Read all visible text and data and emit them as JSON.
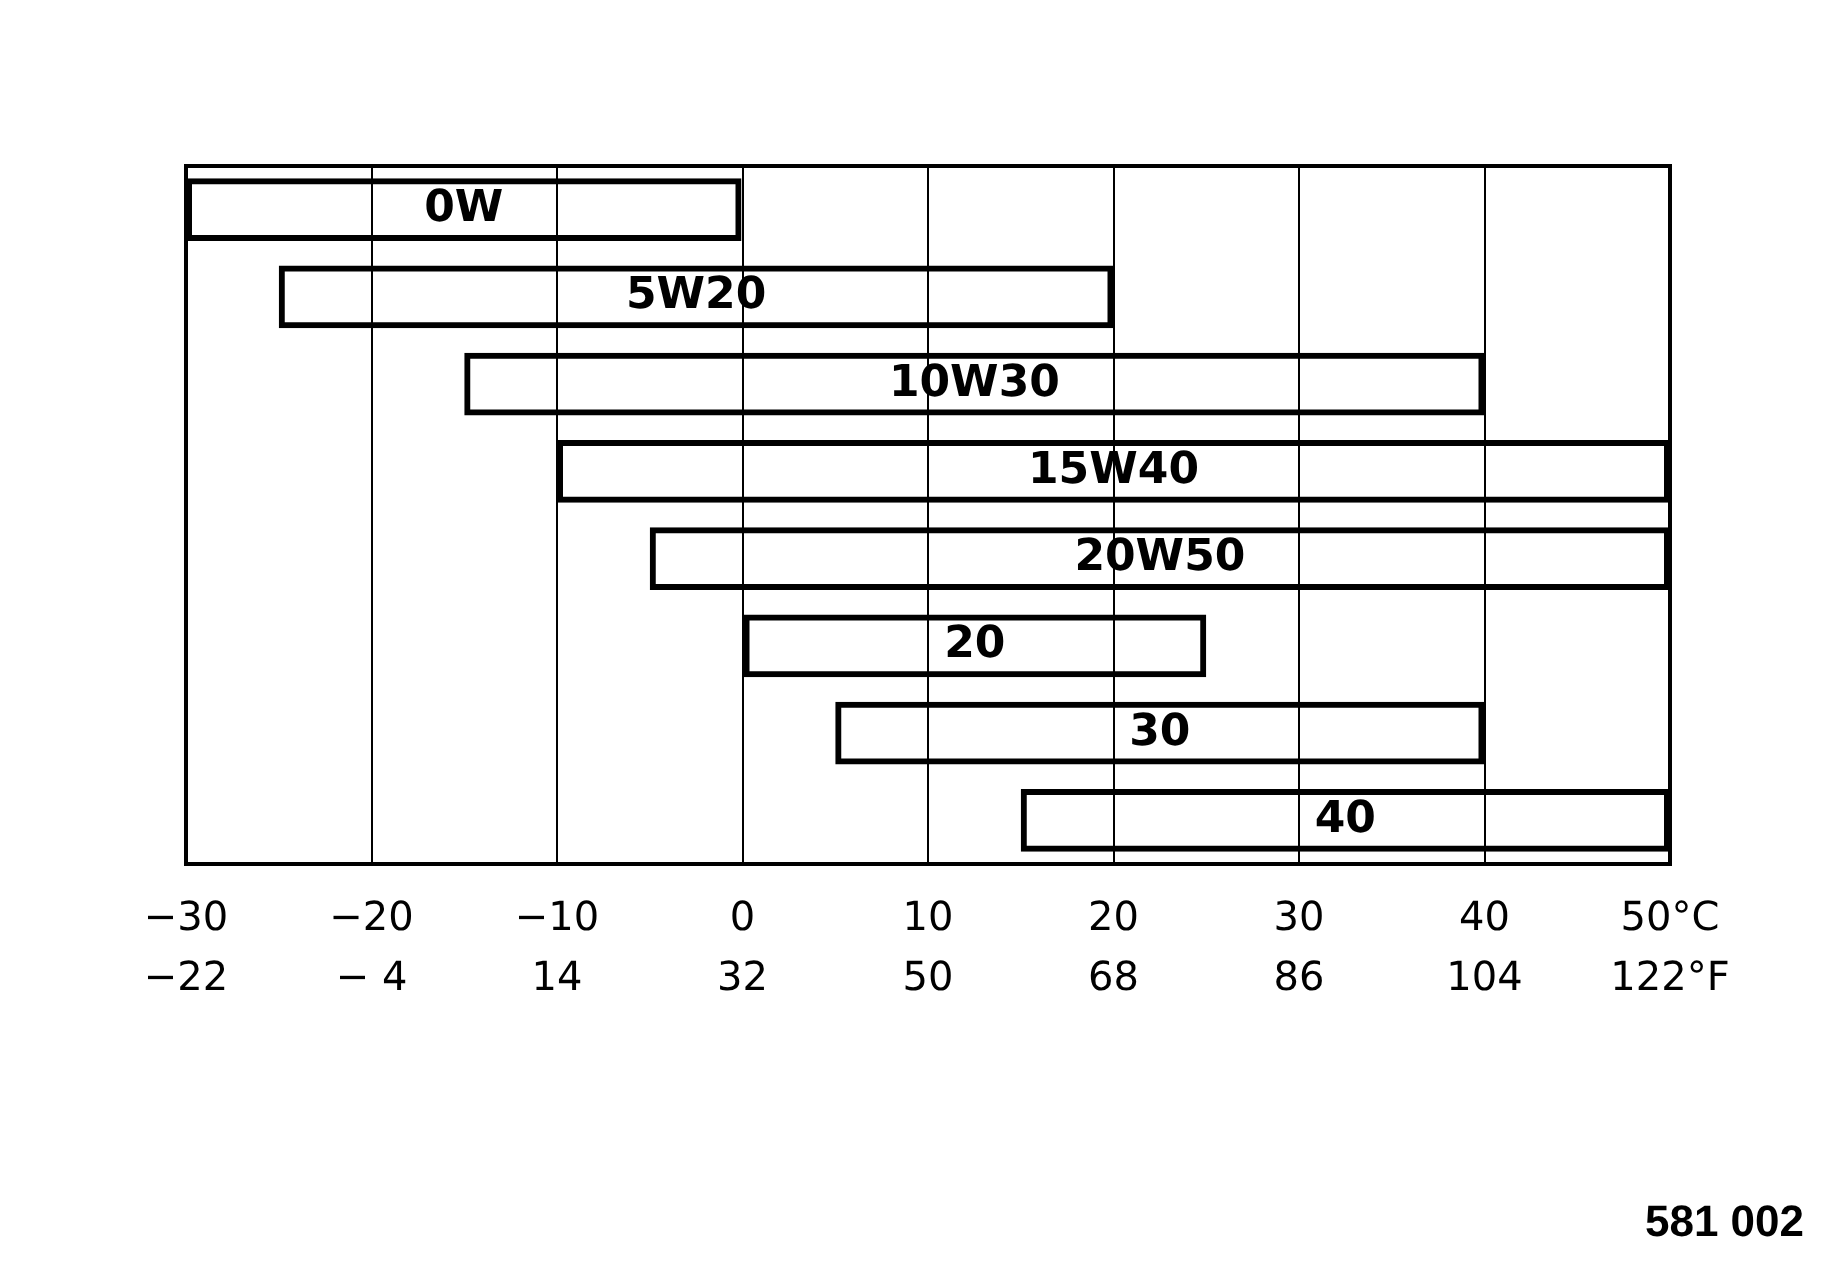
{
  "chart_data": {
    "type": "bar",
    "orientation": "horizontal",
    "categories": [
      "0W",
      "5W20",
      "10W30",
      "15W40",
      "20W50",
      "20",
      "30",
      "40"
    ],
    "base": [
      -30,
      -25,
      -15,
      -10,
      -5,
      0,
      5,
      15
    ],
    "values": [
      30,
      45,
      55,
      60,
      55,
      25,
      35,
      35
    ],
    "color": "#000000",
    "xlim": [
      -30,
      50
    ],
    "xticks": [
      {
        "value": -30,
        "label": "−30"
      },
      {
        "value": -20,
        "label": "−20"
      },
      {
        "value": -10,
        "label": "−10"
      },
      0,
      10,
      20,
      30,
      40,
      {
        "value": 50,
        "label": "50°C"
      }
    ],
    "x2lim": [
      -22,
      122
    ],
    "x2ticks": [
      {
        "value": -22,
        "label": "−22"
      },
      {
        "value": -4,
        "label": "− 4"
      },
      14,
      32,
      50,
      68,
      86,
      104,
      {
        "value": 122,
        "label": "122°F"
      }
    ],
    "grid": "x",
    "legend": false,
    "tick_labels": "x",
    "annotations": [
      "581 002"
    ]
  }
}
